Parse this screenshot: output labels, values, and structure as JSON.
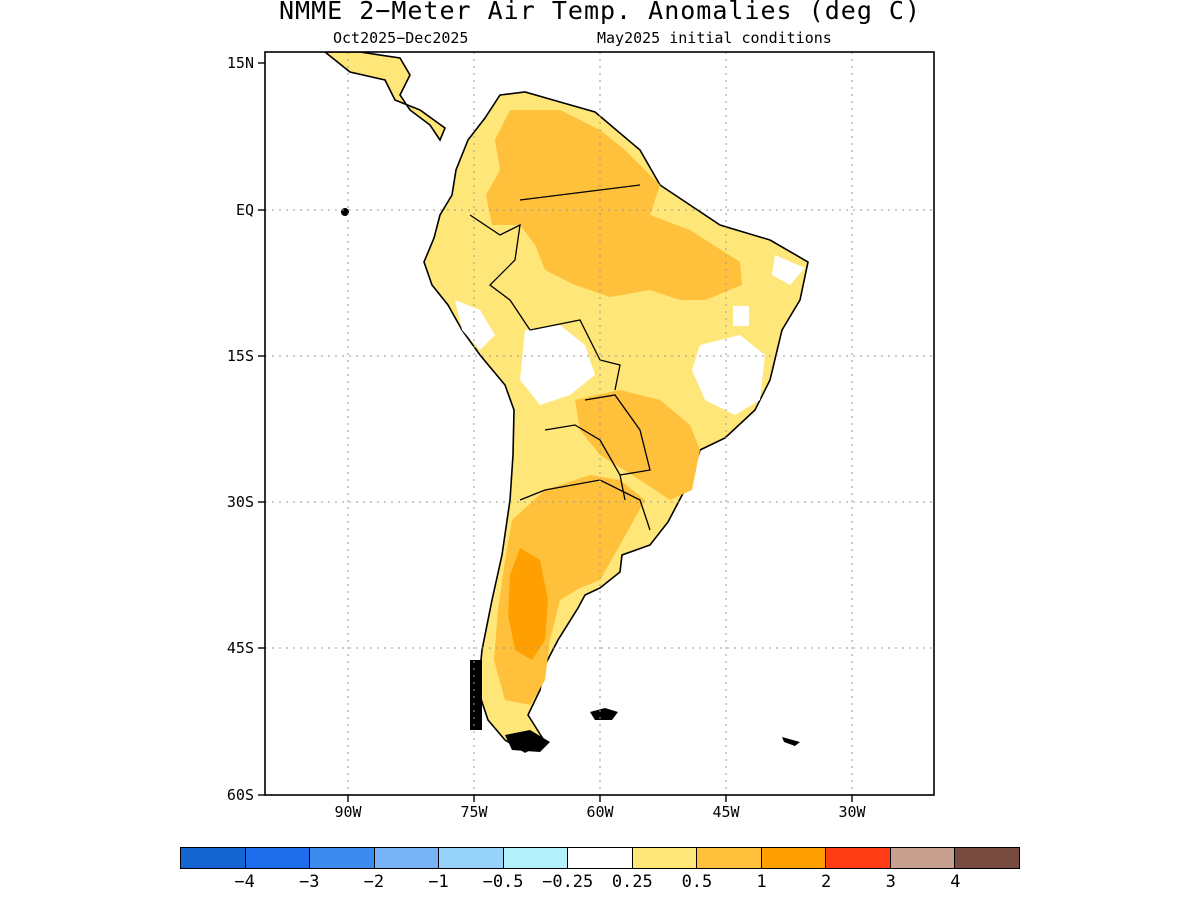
{
  "title": "NMME 2−Meter Air Temp. Anomalies (deg C)",
  "subtitle_left": "Oct2025−Dec2025",
  "subtitle_right": "May2025 initial conditions",
  "lat_labels": [
    "15N",
    "EQ",
    "15S",
    "30S",
    "45S",
    "60S"
  ],
  "lon_labels": [
    "90W",
    "75W",
    "60W",
    "45W",
    "30W"
  ],
  "legend": {
    "colors": [
      "#1464d2",
      "#1e6eeb",
      "#3c8cf0",
      "#78b4f5",
      "#96d2fa",
      "#b4f0fa",
      "#ffffff",
      "#ffe678",
      "#ffc03c",
      "#ffa000",
      "#ff3c14",
      "#c8a090",
      "#784b41"
    ],
    "labels": [
      "−4",
      "−3",
      "−2",
      "−1",
      "−0.5",
      "−0.25",
      "0.25",
      "0.5",
      "1",
      "2",
      "3",
      "4"
    ]
  },
  "map_colors": {
    "land_0_25_0_5": "#ffe678",
    "land_0_5_1": "#ffc03c",
    "land_1_2": "#ffa000",
    "coast": "#000000",
    "grid": "#9a9a9a"
  }
}
